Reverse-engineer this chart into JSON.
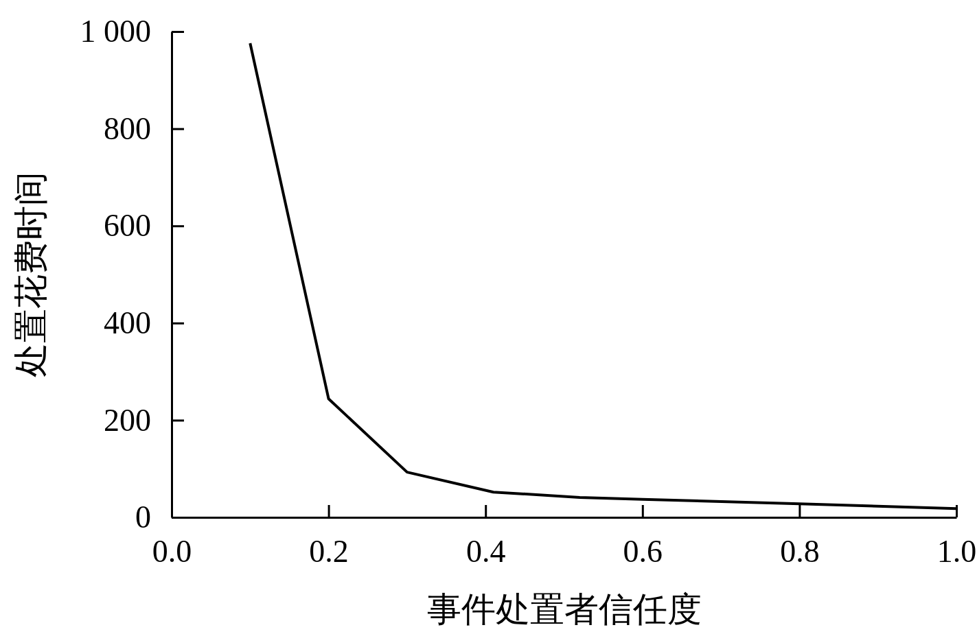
{
  "chart_data": {
    "type": "line",
    "xlabel": "事件处置者信任度",
    "ylabel": "处置花费时间",
    "x": [
      0.1,
      0.2,
      0.3,
      0.41,
      0.52,
      0.6,
      0.8,
      1.0
    ],
    "series": [
      {
        "color": "#000000",
        "values": [
          976,
          244,
          93,
          52,
          41,
          37,
          28,
          18
        ]
      }
    ],
    "xlim": [
      0,
      1
    ],
    "ylim": [
      0,
      1000
    ],
    "xticks": [
      {
        "value": 0,
        "label": "0.0"
      },
      {
        "value": 0.2,
        "label": "0.2"
      },
      {
        "value": 0.4,
        "label": "0.4"
      },
      {
        "value": 0.6,
        "label": "0.6"
      },
      {
        "value": 0.8,
        "label": "0.8"
      },
      {
        "value": 1,
        "label": "1.0"
      }
    ],
    "yticks": [
      0,
      200,
      400,
      600,
      800,
      {
        "value": 1000,
        "label": "1 000"
      }
    ],
    "grid": false,
    "marker": "none",
    "line_style": "solid"
  }
}
